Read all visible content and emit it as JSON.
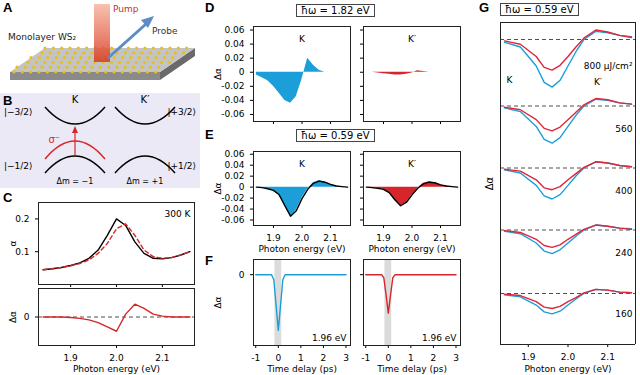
{
  "diagrams": [
    {
      "panel": "A",
      "labels": [
        "Pump",
        "Probe",
        "Monolayer WS₂"
      ]
    },
    {
      "panel": "B",
      "valleys": [
        "K",
        "K′"
      ],
      "upper_states": [
        "|−3/2⟩",
        "|+3/2⟩"
      ],
      "lower_states": [
        "|−1/2⟩",
        "|+1/2⟩"
      ],
      "transitions": [
        "Δm = −1",
        "Δm = +1"
      ],
      "polarization": "σ⁻"
    }
  ],
  "chart_data": [
    {
      "type": "line",
      "panel": "C",
      "annotations": [
        "300 K"
      ],
      "ylabel": "α",
      "tick_labels": "y",
      "xlim": [
        1.83,
        2.17
      ],
      "xticks": [
        1.9,
        {
          "value": 2,
          "label": "2.0"
        },
        2.1
      ],
      "ylim": [
        0,
        0.25
      ],
      "yticks": [
        0.1,
        0.2
      ],
      "x": [
        1.84,
        1.86,
        1.88,
        1.9,
        1.92,
        1.94,
        1.96,
        1.98,
        2.0,
        2.02,
        2.04,
        2.06,
        2.08,
        2.1,
        2.12,
        2.14,
        2.16
      ],
      "series": [
        {
          "color": "#000000",
          "line_style": "solid",
          "values": [
            0.045,
            0.048,
            0.052,
            0.058,
            0.066,
            0.08,
            0.105,
            0.15,
            0.2,
            0.18,
            0.13,
            0.095,
            0.08,
            0.078,
            0.082,
            0.09,
            0.1
          ]
        },
        {
          "color": "#d62728",
          "line_style": "dashed",
          "values": [
            0.045,
            0.048,
            0.052,
            0.057,
            0.064,
            0.075,
            0.095,
            0.125,
            0.17,
            0.185,
            0.15,
            0.105,
            0.085,
            0.08,
            0.082,
            0.09,
            0.1
          ]
        }
      ]
    },
    {
      "type": "line",
      "panel": "C",
      "ylabel": "Δα",
      "xlabel": "Photon energy (eV)",
      "grid": true,
      "xlim": [
        1.83,
        2.17
      ],
      "xticks": [
        1.9,
        {
          "value": 2,
          "label": "2.0"
        },
        2.1
      ],
      "ylim": [
        -0.1,
        0.1
      ],
      "yticks": [
        0
      ],
      "x": [
        1.84,
        1.86,
        1.88,
        1.9,
        1.92,
        1.94,
        1.96,
        1.98,
        2.0,
        2.02,
        2.04,
        2.06,
        2.08,
        2.1,
        2.12,
        2.14,
        2.16
      ],
      "series": [
        {
          "color": "#d62728",
          "line_style": "solid",
          "values": [
            0,
            0,
            0,
            -0.002,
            -0.005,
            -0.01,
            -0.02,
            -0.035,
            -0.05,
            0.01,
            0.045,
            0.03,
            0.01,
            0.003,
            0,
            0,
            0
          ]
        }
      ]
    },
    {
      "type": "area",
      "panel": "D",
      "title": "ħω = 1.82 eV",
      "annotations": [
        "K"
      ],
      "ylabel": "Δα",
      "tick_labels": "y",
      "xlim": [
        1.83,
        2.17
      ],
      "xticks": [
        1.9,
        {
          "value": 2,
          "label": "2.0"
        },
        2.1
      ],
      "ylim": [
        -0.07,
        0.065
      ],
      "yticks": [
        -0.06,
        -0.04,
        -0.02,
        0,
        0.02,
        0.04,
        0.06
      ],
      "x": [
        1.84,
        1.86,
        1.88,
        1.9,
        1.92,
        1.94,
        1.96,
        1.98,
        2.0,
        2.02,
        2.04,
        2.06,
        2.08,
        2.1,
        2.12,
        2.14,
        2.16
      ],
      "series": [
        {
          "color": "#1c9fd8",
          "values": [
            -0.004,
            -0.008,
            -0.012,
            -0.02,
            -0.03,
            -0.04,
            -0.044,
            -0.035,
            -0.01,
            0.02,
            0.01,
            0.003,
            0,
            0,
            0,
            0,
            0
          ]
        }
      ]
    },
    {
      "type": "area",
      "panel": "D",
      "annotations": [
        "K′"
      ],
      "tick_labels": false,
      "xlim": [
        1.83,
        2.17
      ],
      "xticks": [
        1.9,
        {
          "value": 2,
          "label": "2.0"
        },
        2.1
      ],
      "ylim": [
        -0.07,
        0.065
      ],
      "yticks": [
        -0.06,
        -0.04,
        -0.02,
        0,
        0.02,
        0.04,
        0.06
      ],
      "x": [
        1.84,
        1.86,
        1.88,
        1.9,
        1.92,
        1.94,
        1.96,
        1.98,
        2.0,
        2.02,
        2.04,
        2.06,
        2.08,
        2.1,
        2.12,
        2.14,
        2.16
      ],
      "series": [
        {
          "color": "#d7262b",
          "values": [
            0,
            0,
            -0.001,
            -0.002,
            -0.003,
            -0.004,
            -0.004,
            -0.003,
            -0.001,
            0.002,
            0.001,
            0,
            0,
            0,
            0,
            0,
            0
          ]
        }
      ]
    },
    {
      "type": "area",
      "panel": "E",
      "title": "ħω = 0.59 eV",
      "annotations": [
        "K"
      ],
      "ylabel": "Δα",
      "xlabel": "Photon energy (eV)",
      "xlim": [
        1.83,
        2.17
      ],
      "xticks": [
        1.9,
        {
          "value": 2,
          "label": "2.0"
        },
        2.1
      ],
      "ylim": [
        -0.07,
        0.065
      ],
      "yticks": [
        -0.06,
        -0.04,
        -0.02,
        0,
        0.02,
        0.04,
        0.06
      ],
      "x": [
        1.84,
        1.86,
        1.88,
        1.9,
        1.92,
        1.94,
        1.96,
        1.98,
        2.0,
        2.02,
        2.04,
        2.06,
        2.08,
        2.1,
        2.12,
        2.14,
        2.16
      ],
      "series": [
        {
          "color": "#1c9fd8",
          "type": "area",
          "values": [
            0,
            -0.001,
            -0.003,
            -0.006,
            -0.015,
            -0.035,
            -0.055,
            -0.042,
            -0.02,
            -0.003,
            0.008,
            0.012,
            0.01,
            0.005,
            0.002,
            0,
            0
          ]
        },
        {
          "color": "#000000",
          "type": "line",
          "values": [
            0,
            -0.001,
            -0.003,
            -0.006,
            -0.014,
            -0.034,
            -0.053,
            -0.043,
            -0.021,
            -0.004,
            0.007,
            0.011,
            0.009,
            0.005,
            0.002,
            0.001,
            0
          ]
        }
      ]
    },
    {
      "type": "area",
      "panel": "E",
      "annotations": [
        "K′"
      ],
      "xlabel": "Photon energy (eV)",
      "tick_labels": "x",
      "xlim": [
        1.83,
        2.17
      ],
      "xticks": [
        1.9,
        {
          "value": 2,
          "label": "2.0"
        },
        2.1
      ],
      "ylim": [
        -0.07,
        0.065
      ],
      "yticks": [
        -0.06,
        -0.04,
        -0.02,
        0,
        0.02,
        0.04,
        0.06
      ],
      "x": [
        1.84,
        1.86,
        1.88,
        1.9,
        1.92,
        1.94,
        1.96,
        1.98,
        2.0,
        2.02,
        2.04,
        2.06,
        2.08,
        2.1,
        2.12,
        2.14,
        2.16
      ],
      "series": [
        {
          "color": "#d7262b",
          "type": "area",
          "values": [
            0,
            -0.001,
            -0.002,
            -0.004,
            -0.01,
            -0.024,
            -0.035,
            -0.028,
            -0.014,
            -0.002,
            0.007,
            0.01,
            0.008,
            0.004,
            0.002,
            0,
            0
          ]
        },
        {
          "color": "#000000",
          "type": "line",
          "values": [
            0,
            -0.001,
            -0.002,
            -0.004,
            -0.01,
            -0.023,
            -0.034,
            -0.028,
            -0.014,
            -0.002,
            0.006,
            0.009,
            0.008,
            0.004,
            0.002,
            0.001,
            0
          ]
        }
      ]
    },
    {
      "type": "line",
      "panel": "F",
      "annotations": [
        "1.96 eV"
      ],
      "ylabel": "Δα",
      "xlabel": "Time delay (ps)",
      "shaded_x": [
        -0.15,
        0.15
      ],
      "xlim": [
        -1.1,
        3.2
      ],
      "xticks": [
        -1,
        0,
        1,
        2,
        3
      ],
      "ylim": [
        -0.07,
        0.015
      ],
      "yticks": [
        0
      ],
      "x": [
        -1,
        -0.5,
        -0.3,
        -0.2,
        -0.1,
        0,
        0.1,
        0.2,
        0.3,
        0.5,
        1,
        2,
        3
      ],
      "series": [
        {
          "color": "#1c9fd8",
          "values": [
            0,
            0,
            0,
            -0.005,
            -0.03,
            -0.055,
            -0.03,
            -0.005,
            0,
            0,
            0,
            0,
            0
          ]
        }
      ]
    },
    {
      "type": "line",
      "panel": "F",
      "annotations": [
        "1.96 eV"
      ],
      "xlabel": "Time delay (ps)",
      "tick_labels": "x",
      "shaded_x": [
        -0.15,
        0.15
      ],
      "xlim": [
        -1.1,
        3.2
      ],
      "xticks": [
        -1,
        0,
        1,
        2,
        3
      ],
      "ylim": [
        -0.07,
        0.015
      ],
      "yticks": [
        0
      ],
      "x": [
        -1,
        -0.5,
        -0.3,
        -0.2,
        -0.1,
        0,
        0.1,
        0.2,
        0.3,
        0.5,
        1,
        2,
        3
      ],
      "series": [
        {
          "color": "#d7262b",
          "values": [
            0,
            0,
            0,
            -0.003,
            -0.02,
            -0.038,
            -0.02,
            -0.003,
            0,
            0,
            0,
            0,
            0
          ]
        }
      ]
    },
    {
      "type": "line",
      "panel": "G",
      "title": "ħω = 0.59 eV",
      "annotations": [
        "K",
        "K′",
        "800 μJ/cm²"
      ],
      "grid": true,
      "tick_labels": false,
      "xlim": [
        1.83,
        2.17
      ],
      "ylim": [
        -0.075,
        0.025
      ],
      "yticks": [
        0
      ],
      "x": [
        1.84,
        1.88,
        1.92,
        1.94,
        1.96,
        1.98,
        2.0,
        2.02,
        2.04,
        2.07,
        2.1,
        2.13,
        2.16
      ],
      "series": [
        {
          "color": "#1c9fd8",
          "values": [
            -0.004,
            -0.011,
            -0.039,
            -0.063,
            -0.07,
            -0.06,
            -0.039,
            -0.018,
            0,
            0.012,
            0.01,
            0.006,
            0.004
          ]
        },
        {
          "color": "#e0263a",
          "values": [
            -0.002,
            -0.007,
            -0.025,
            -0.041,
            -0.045,
            -0.038,
            -0.025,
            -0.011,
            0.002,
            0.014,
            0.011,
            0.006,
            0.003
          ]
        }
      ]
    },
    {
      "type": "line",
      "panel": "G",
      "annotations": [
        "560"
      ],
      "grid": true,
      "tick_labels": false,
      "xlim": [
        1.83,
        2.17
      ],
      "ylim": [
        -0.075,
        0.025
      ],
      "yticks": [
        0
      ],
      "x": [
        1.84,
        1.88,
        1.92,
        1.94,
        1.96,
        1.98,
        2.0,
        2.02,
        2.04,
        2.07,
        2.1,
        2.13,
        2.16
      ],
      "series": [
        {
          "color": "#1c9fd8",
          "values": [
            -0.003,
            -0.009,
            -0.033,
            -0.054,
            -0.06,
            -0.051,
            -0.033,
            -0.015,
            0,
            0.011,
            0.009,
            0.005,
            0.003
          ]
        },
        {
          "color": "#e0263a",
          "values": [
            -0.002,
            -0.006,
            -0.022,
            -0.036,
            -0.04,
            -0.034,
            -0.022,
            -0.01,
            0.002,
            0.012,
            0.01,
            0.005,
            0.003
          ]
        }
      ]
    },
    {
      "type": "line",
      "panel": "G",
      "annotations": [
        "400"
      ],
      "ylabel": "Δα",
      "grid": true,
      "tick_labels": false,
      "xlim": [
        1.83,
        2.17
      ],
      "ylim": [
        -0.075,
        0.025
      ],
      "yticks": [
        0
      ],
      "x": [
        1.84,
        1.88,
        1.92,
        1.94,
        1.96,
        1.98,
        2.0,
        2.02,
        2.04,
        2.07,
        2.1,
        2.13,
        2.16
      ],
      "series": [
        {
          "color": "#1c9fd8",
          "values": [
            -0.003,
            -0.008,
            -0.028,
            -0.045,
            -0.05,
            -0.043,
            -0.028,
            -0.013,
            0,
            0.01,
            0.008,
            0.004,
            0.002
          ]
        },
        {
          "color": "#e0263a",
          "values": [
            -0.002,
            -0.005,
            -0.019,
            -0.032,
            -0.035,
            -0.03,
            -0.019,
            -0.009,
            0.001,
            0.01,
            0.008,
            0.004,
            0.002
          ]
        }
      ]
    },
    {
      "type": "line",
      "panel": "G",
      "annotations": [
        "240"
      ],
      "grid": true,
      "tick_labels": false,
      "xlim": [
        1.83,
        2.17
      ],
      "ylim": [
        -0.075,
        0.025
      ],
      "yticks": [
        0
      ],
      "x": [
        1.84,
        1.88,
        1.92,
        1.94,
        1.96,
        1.98,
        2.0,
        2.02,
        2.04,
        2.07,
        2.1,
        2.13,
        2.16
      ],
      "series": [
        {
          "color": "#1c9fd8",
          "values": [
            -0.002,
            -0.006,
            -0.021,
            -0.034,
            -0.038,
            -0.032,
            -0.021,
            -0.01,
            0,
            0.008,
            0.006,
            0.003,
            0.002
          ]
        },
        {
          "color": "#e0263a",
          "values": [
            -0.001,
            -0.004,
            -0.015,
            -0.025,
            -0.028,
            -0.024,
            -0.015,
            -0.007,
            0.001,
            0.008,
            0.006,
            0.003,
            0.001
          ]
        }
      ]
    },
    {
      "type": "line",
      "panel": "G",
      "annotations": [
        "160"
      ],
      "xlabel": "Photon energy (eV)",
      "grid": true,
      "tick_labels": "x",
      "xlim": [
        1.83,
        2.17
      ],
      "xticks": [
        1.9,
        {
          "value": 2,
          "label": "2.0"
        },
        2.1
      ],
      "ylim": [
        -0.075,
        0.025
      ],
      "yticks": [
        0
      ],
      "x": [
        1.84,
        1.88,
        1.92,
        1.94,
        1.96,
        1.98,
        2.0,
        2.02,
        2.04,
        2.07,
        2.1,
        2.13,
        2.16
      ],
      "series": [
        {
          "color": "#1c9fd8",
          "values": [
            -0.002,
            -0.005,
            -0.017,
            -0.027,
            -0.03,
            -0.026,
            -0.017,
            -0.008,
            0,
            0.006,
            0.005,
            0.002,
            0.001
          ]
        },
        {
          "color": "#e0263a",
          "values": [
            -0.001,
            -0.003,
            -0.012,
            -0.02,
            -0.022,
            -0.019,
            -0.012,
            -0.006,
            0.001,
            0.006,
            0.005,
            0.002,
            0.001
          ]
        }
      ]
    }
  ]
}
